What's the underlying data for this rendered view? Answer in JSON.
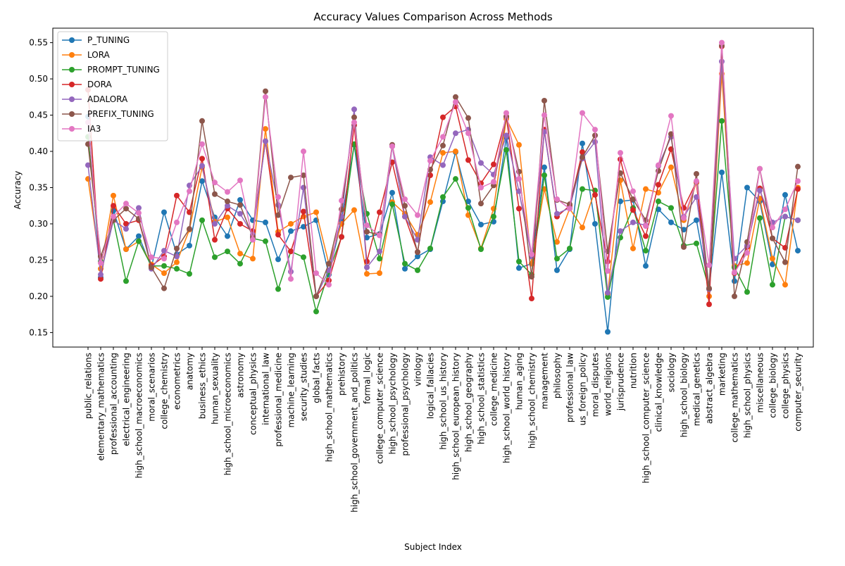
{
  "chart_data": {
    "type": "line",
    "title": "Accuracy Values Comparison Across Methods",
    "xlabel": "Subject Index",
    "ylabel": "Accuracy",
    "ylim": [
      0.13,
      0.57
    ],
    "yticks": [
      "0.15",
      "0.20",
      "0.25",
      "0.30",
      "0.35",
      "0.40",
      "0.45",
      "0.50",
      "0.55"
    ],
    "grid": false,
    "legend_position": "top-left",
    "categories": [
      "public_relations",
      "elementary_mathematics",
      "professional_accounting",
      "electrical_engineering",
      "high_school_macroeconomics",
      "moral_scenarios",
      "college_chemistry",
      "econometrics",
      "anatomy",
      "business_ethics",
      "human_sexuality",
      "high_school_microeconomics",
      "astronomy",
      "conceptual_physics",
      "international_law",
      "professional_medicine",
      "machine_learning",
      "security_studies",
      "global_facts",
      "high_school_mathematics",
      "prehistory",
      "high_school_government_and_politics",
      "formal_logic",
      "college_computer_science",
      "high_school_psychology",
      "professional_psychology",
      "virology",
      "logical_fallacies",
      "high_school_us_history",
      "high_school_european_history",
      "high_school_geography",
      "high_school_statistics",
      "college_medicine",
      "high_school_world_history",
      "human_aging",
      "high_school_chemistry",
      "management",
      "philosophy",
      "professional_law",
      "us_foreign_policy",
      "moral_disputes",
      "world_religions",
      "jurisprudence",
      "nutrition",
      "high_school_computer_science",
      "clinical_knowledge",
      "sociology",
      "high_school_biology",
      "medical_genetics",
      "abstract_algebra",
      "marketing",
      "college_mathematics",
      "high_school_physics",
      "miscellaneous",
      "college_biology",
      "college_physics",
      "computer_security"
    ],
    "series": [
      {
        "name": "P_TUNING",
        "color": "#1f77b4",
        "values": [
          0.448,
          0.226,
          0.318,
          0.265,
          0.283,
          0.24,
          0.316,
          0.258,
          0.27,
          0.359,
          0.309,
          0.283,
          0.333,
          0.305,
          0.302,
          0.251,
          0.29,
          0.296,
          0.305,
          0.23,
          0.305,
          0.409,
          0.281,
          0.286,
          0.343,
          0.238,
          0.255,
          0.265,
          0.331,
          0.399,
          0.331,
          0.299,
          0.303,
          0.419,
          0.239,
          0.245,
          0.378,
          0.236,
          0.265,
          0.411,
          0.3,
          0.151,
          0.331,
          0.333,
          0.242,
          0.32,
          0.302,
          0.292,
          0.305,
          0.21,
          0.371,
          0.221,
          0.35,
          0.331,
          0.244,
          0.34,
          0.263
        ]
      },
      {
        "name": "LORA",
        "color": "#ff7f0e",
        "values": [
          0.362,
          0.238,
          0.339,
          0.265,
          0.276,
          0.244,
          0.232,
          0.247,
          0.292,
          0.378,
          0.303,
          0.309,
          0.259,
          0.252,
          0.431,
          0.289,
          0.3,
          0.31,
          0.316,
          0.245,
          0.3,
          0.319,
          0.231,
          0.232,
          0.33,
          0.314,
          0.285,
          0.33,
          0.398,
          0.4,
          0.312,
          0.266,
          0.321,
          0.445,
          0.409,
          0.245,
          0.348,
          0.275,
          0.321,
          0.295,
          0.346,
          0.203,
          0.36,
          0.266,
          0.348,
          0.343,
          0.378,
          0.305,
          0.357,
          0.2,
          0.507,
          0.242,
          0.246,
          0.335,
          0.252,
          0.216,
          0.35
        ]
      },
      {
        "name": "PROMPT_TUNING",
        "color": "#2ca02c",
        "values": [
          0.42,
          0.248,
          0.305,
          0.221,
          0.276,
          0.242,
          0.242,
          0.238,
          0.231,
          0.305,
          0.254,
          0.262,
          0.245,
          0.28,
          0.276,
          0.21,
          0.262,
          0.254,
          0.179,
          0.234,
          0.282,
          0.41,
          0.314,
          0.252,
          0.327,
          0.245,
          0.236,
          0.266,
          0.337,
          0.362,
          0.322,
          0.265,
          0.31,
          0.402,
          0.248,
          0.23,
          0.367,
          0.252,
          0.266,
          0.348,
          0.346,
          0.199,
          0.281,
          0.322,
          0.263,
          0.331,
          0.322,
          0.27,
          0.273,
          0.21,
          0.442,
          0.24,
          0.206,
          0.308,
          0.216,
          0.31,
          0.305
        ]
      },
      {
        "name": "DORA",
        "color": "#d62728",
        "values": [
          0.485,
          0.224,
          0.325,
          0.3,
          0.305,
          0.242,
          0.255,
          0.339,
          0.316,
          0.39,
          0.278,
          0.321,
          0.3,
          0.29,
          0.414,
          0.285,
          0.262,
          0.317,
          0.2,
          0.222,
          0.282,
          0.436,
          0.248,
          0.316,
          0.385,
          0.31,
          0.261,
          0.367,
          0.447,
          0.462,
          0.388,
          0.356,
          0.382,
          0.448,
          0.321,
          0.197,
          0.43,
          0.31,
          0.325,
          0.399,
          0.34,
          0.248,
          0.389,
          0.319,
          0.283,
          0.354,
          0.403,
          0.322,
          0.358,
          0.189,
          0.545,
          0.232,
          0.268,
          0.349,
          0.28,
          0.267,
          0.348
        ]
      },
      {
        "name": "ADALORA",
        "color": "#9467bd",
        "values": [
          0.381,
          0.23,
          0.305,
          0.293,
          0.322,
          0.238,
          0.263,
          0.255,
          0.353,
          0.38,
          0.3,
          0.325,
          0.314,
          0.285,
          0.414,
          0.326,
          0.234,
          0.35,
          0.2,
          0.236,
          0.31,
          0.458,
          0.24,
          0.262,
          0.407,
          0.31,
          0.278,
          0.392,
          0.381,
          0.425,
          0.43,
          0.384,
          0.368,
          0.422,
          0.345,
          0.255,
          0.427,
          0.314,
          0.322,
          0.39,
          0.413,
          0.205,
          0.29,
          0.302,
          0.298,
          0.38,
          0.42,
          0.31,
          0.337,
          0.21,
          0.524,
          0.252,
          0.27,
          0.346,
          0.302,
          0.31,
          0.305
        ]
      },
      {
        "name": "PREFIX_TUNING",
        "color": "#8c564b",
        "values": [
          0.41,
          0.255,
          0.305,
          0.321,
          0.307,
          0.24,
          0.211,
          0.266,
          0.293,
          0.442,
          0.341,
          0.331,
          0.326,
          0.282,
          0.483,
          0.312,
          0.364,
          0.367,
          0.2,
          0.245,
          0.32,
          0.447,
          0.289,
          0.285,
          0.409,
          0.325,
          0.261,
          0.375,
          0.408,
          0.475,
          0.446,
          0.328,
          0.353,
          0.448,
          0.372,
          0.227,
          0.47,
          0.333,
          0.327,
          0.392,
          0.422,
          0.262,
          0.37,
          0.334,
          0.305,
          0.373,
          0.424,
          0.268,
          0.369,
          0.211,
          0.546,
          0.2,
          0.275,
          0.376,
          0.28,
          0.247,
          0.379
        ]
      },
      {
        "name": "IA3",
        "color": "#e377c2",
        "values": [
          0.44,
          0.246,
          0.31,
          0.328,
          0.315,
          0.254,
          0.252,
          0.302,
          0.345,
          0.41,
          0.357,
          0.344,
          0.36,
          0.278,
          0.475,
          0.337,
          0.224,
          0.4,
          0.232,
          0.216,
          0.332,
          0.44,
          0.298,
          0.284,
          0.407,
          0.334,
          0.312,
          0.387,
          0.42,
          0.468,
          0.425,
          0.35,
          0.358,
          0.453,
          0.362,
          0.258,
          0.45,
          0.334,
          0.321,
          0.453,
          0.43,
          0.235,
          0.398,
          0.345,
          0.297,
          0.381,
          0.449,
          0.308,
          0.359,
          0.243,
          0.55,
          0.233,
          0.26,
          0.376,
          0.295,
          0.32,
          0.359
        ]
      }
    ]
  }
}
